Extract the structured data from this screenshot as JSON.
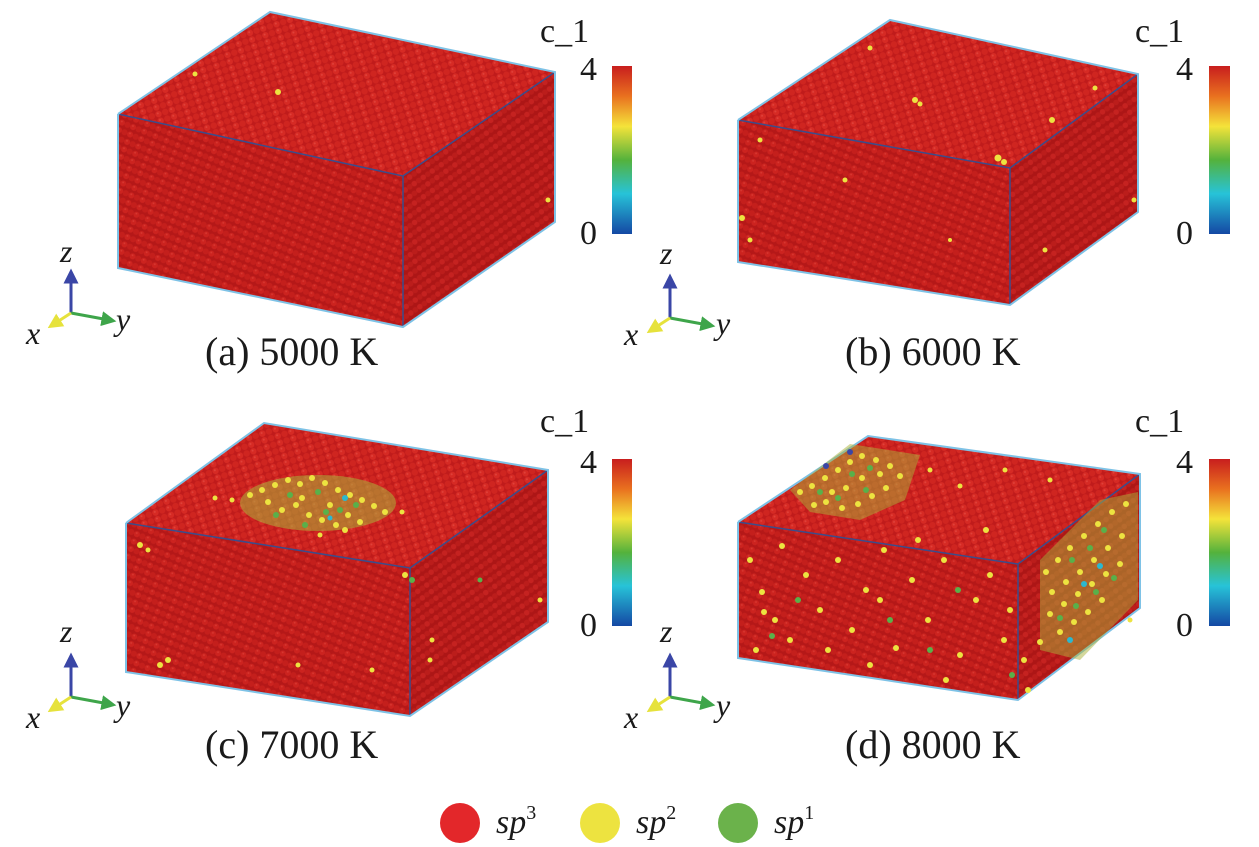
{
  "panels": [
    {
      "caption": "(a) 5000 K",
      "temperature_K": 5000
    },
    {
      "caption": "(b) 6000 K",
      "temperature_K": 6000
    },
    {
      "caption": "(c) 7000 K",
      "temperature_K": 7000
    },
    {
      "caption": "(d) 8000 K",
      "temperature_K": 8000
    }
  ],
  "colorbar": {
    "title": "c_1",
    "max_label": "4",
    "min_label": "0",
    "stops": [
      "#c81e1e",
      "#e9711f",
      "#f4e33a",
      "#54b23c",
      "#27c3d8",
      "#1448a4"
    ]
  },
  "axes": {
    "x": "x",
    "y": "y",
    "z": "z"
  },
  "axis_colors": {
    "x": "#e6e23c",
    "y": "#3ea54a",
    "z": "#3a46a6"
  },
  "legend": [
    {
      "base": "sp",
      "sup": "3",
      "color": "#e3272a"
    },
    {
      "base": "sp",
      "sup": "2",
      "color": "#ede340"
    },
    {
      "base": "sp",
      "sup": "1",
      "color": "#6bb24b"
    }
  ],
  "colors": {
    "atom_red": "#c81e1e",
    "box_edge": "#7ec2e6",
    "box_inner_edge": "#3a4d8c"
  }
}
